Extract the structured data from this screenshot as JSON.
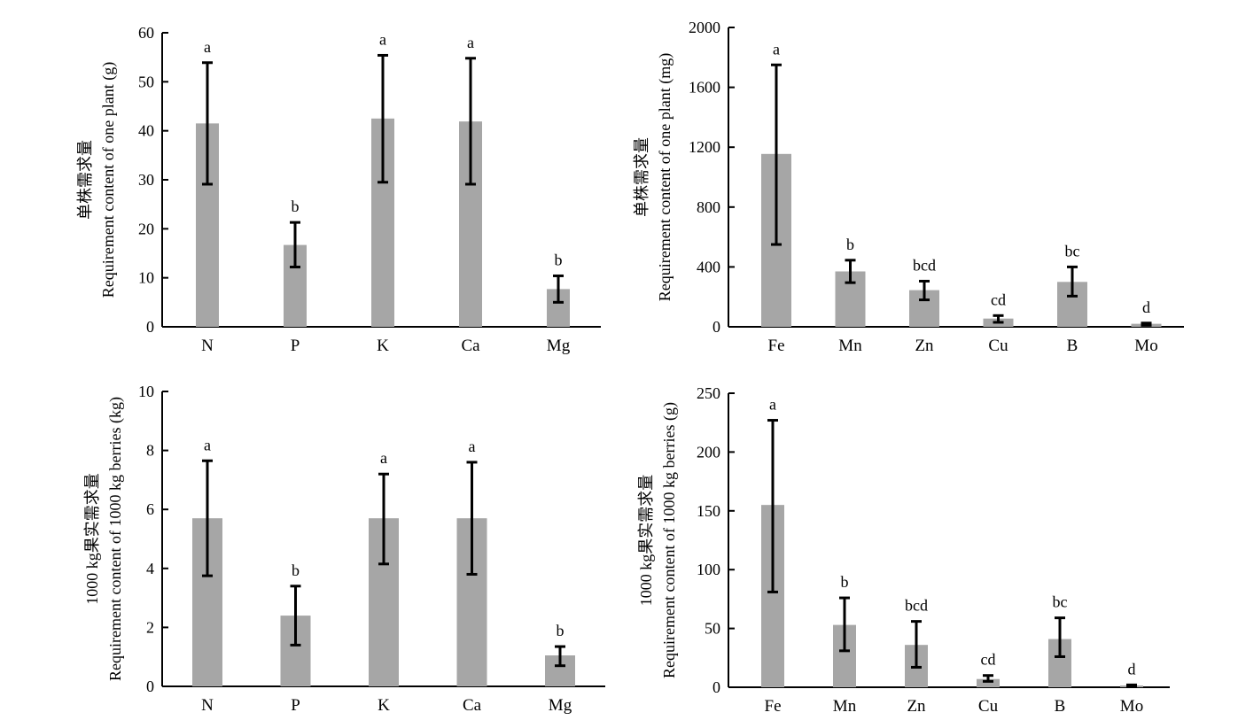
{
  "colors": {
    "bar": "#a6a6a6",
    "axis": "#000000",
    "error_bar": "#000000"
  },
  "chart_data": [
    {
      "type": "bar",
      "title": "",
      "ylabel_line1": "单株需求量",
      "ylabel_line2": "Requirement content of one plant (g)",
      "ylim": [
        0,
        60
      ],
      "yticks": [
        0,
        10,
        20,
        30,
        40,
        50,
        60
      ],
      "categories": [
        "N",
        "P",
        "K",
        "Ca",
        "Mg"
      ],
      "values": [
        41.5,
        16.7,
        42.5,
        41.9,
        7.7
      ],
      "err_low": [
        29.1,
        12.2,
        29.5,
        29.1,
        5.0
      ],
      "err_high": [
        53.9,
        21.3,
        55.4,
        54.8,
        10.4
      ],
      "significance": [
        "a",
        "b",
        "a",
        "a",
        "b"
      ]
    },
    {
      "type": "bar",
      "title": "",
      "ylabel_line1": "单株需求量",
      "ylabel_line2": "Requirement content of one plant (mg)",
      "ylim": [
        0,
        2000
      ],
      "yticks": [
        0,
        400,
        800,
        1200,
        1600,
        2000
      ],
      "categories": [
        "Fe",
        "Mn",
        "Zn",
        "Cu",
        "B",
        "Mo"
      ],
      "values": [
        1155,
        370,
        245,
        55,
        300,
        20
      ],
      "err_low": [
        550,
        295,
        180,
        30,
        205,
        10
      ],
      "err_high": [
        1750,
        445,
        305,
        75,
        400,
        25
      ],
      "significance": [
        "a",
        "b",
        "bcd",
        "cd",
        "bc",
        "d"
      ]
    },
    {
      "type": "bar",
      "title": "",
      "ylabel_line1": "1000 kg果实需求量",
      "ylabel_line2": "Requirement content of 1000 kg berries (kg)",
      "ylim": [
        0,
        10
      ],
      "yticks": [
        0,
        2,
        4,
        6,
        8,
        10
      ],
      "categories": [
        "N",
        "P",
        "K",
        "Ca",
        "Mg"
      ],
      "values": [
        5.7,
        2.4,
        5.7,
        5.7,
        1.05
      ],
      "err_low": [
        3.75,
        1.4,
        4.15,
        3.8,
        0.7
      ],
      "err_high": [
        7.65,
        3.4,
        7.2,
        7.6,
        1.35
      ],
      "significance": [
        "a",
        "b",
        "a",
        "a",
        "b"
      ]
    },
    {
      "type": "bar",
      "title": "",
      "ylabel_line1": "1000 kg果实需求量",
      "ylabel_line2": "Requirement content of 1000 kg berries (g)",
      "ylim": [
        0,
        250
      ],
      "yticks": [
        0,
        50,
        100,
        150,
        200,
        250
      ],
      "categories": [
        "Fe",
        "Mn",
        "Zn",
        "Cu",
        "B",
        "Mo"
      ],
      "values": [
        155,
        53,
        36,
        7,
        41,
        1.5
      ],
      "err_low": [
        81,
        31,
        17,
        5,
        26,
        1
      ],
      "err_high": [
        227,
        76,
        56,
        10,
        59,
        2
      ],
      "significance": [
        "a",
        "b",
        "bcd",
        "cd",
        "bc",
        "d"
      ]
    }
  ]
}
